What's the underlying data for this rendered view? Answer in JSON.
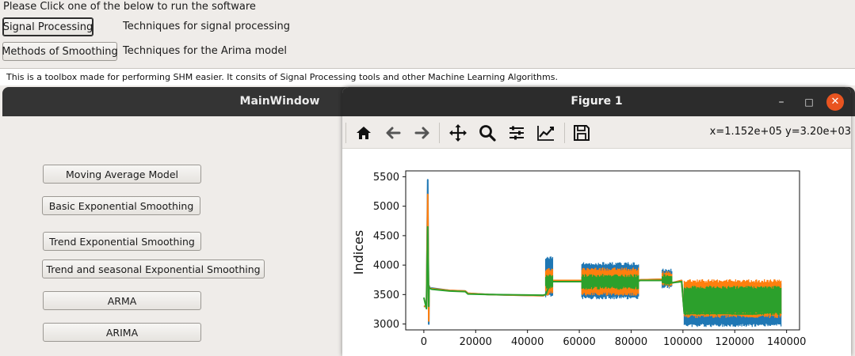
{
  "top": {
    "instruction": "Please Click one of the below to run the software",
    "buttons": [
      {
        "label": "Signal Processing",
        "desc": "Techniques for signal processing"
      },
      {
        "label": "Methods of Smoothing",
        "desc": "Techniques for the Arima model"
      }
    ],
    "info_text": "This is a toolbox made for performing SHM easier. It consits of Signal Processing tools and other Machine Learning Algorithms."
  },
  "main_window": {
    "title": "MainWindow",
    "buttons": [
      "Moving Average Model",
      "Basic Exponential Smoothing",
      "Trend Exponential Smoothing",
      "Trend and seasonal Exponential Smoothing",
      "ARMA",
      "ARIMA"
    ]
  },
  "figure_window": {
    "title": "Figure 1",
    "controls": {
      "minimize": "–",
      "maximize": "□",
      "close": "✕"
    },
    "toolbar_icons": [
      "home-icon",
      "back-arrow-icon",
      "forward-arrow-icon",
      "pan-icon",
      "zoom-icon",
      "configure-subplots-icon",
      "edit-axis-icon",
      "save-icon"
    ],
    "coords_readout": "x=1.152e+05 y=3.20e+03"
  },
  "chart_data": {
    "type": "line",
    "ylabel": "Indices",
    "xlabel": "",
    "xlim": [
      -7000,
      145000
    ],
    "ylim": [
      2900,
      5600
    ],
    "xticks": [
      0,
      20000,
      40000,
      60000,
      80000,
      100000,
      120000,
      140000
    ],
    "xtick_labels": [
      "0",
      "20000",
      "40000",
      "60000",
      "80000",
      "100000",
      "120000",
      "140000"
    ],
    "yticks": [
      3000,
      3500,
      4000,
      4500,
      5000,
      5500
    ],
    "ytick_labels": [
      "3000",
      "3500",
      "4000",
      "4500",
      "5000",
      "5500"
    ],
    "colors": [
      "#1f77b4",
      "#ff7f0e",
      "#2ca02c"
    ],
    "series": [
      {
        "x": [
          0,
          1000,
          1500,
          1900,
          2000,
          2300,
          2600,
          3000,
          10000,
          16000,
          17000,
          25000,
          46000,
          47000,
          48000,
          49000,
          50000,
          61000,
          61500,
          83000,
          83500,
          92000,
          93000,
          96000,
          99500,
          100500,
          117000,
          122000,
          128000,
          138000
        ],
        "y": [
          3300,
          3300,
          5450,
          3000,
          3650,
          3620,
          3600,
          3610,
          3570,
          3560,
          3520,
          3500,
          3480,
          3500,
          3500,
          3700,
          3740,
          3740,
          3730,
          3740,
          3750,
          3760,
          3720,
          3700,
          3740,
          3200,
          3200,
          3150,
          3100,
          3250
        ],
        "band": [
          [
            47000,
            50000,
            3450,
            4150
          ],
          [
            61000,
            83000,
            3420,
            4050
          ],
          [
            92000,
            96000,
            3600,
            3950
          ],
          [
            100500,
            138000,
            2950,
            3700
          ]
        ]
      },
      {
        "x": [
          0,
          1000,
          1500,
          1900,
          2000,
          2300,
          2600,
          3000,
          10000,
          16000,
          17000,
          25000,
          46000,
          47000,
          48000,
          49000,
          50000,
          61000,
          61500,
          83000,
          83500,
          92000,
          93000,
          96000,
          99500,
          100500,
          117000,
          122000,
          128000,
          138000
        ],
        "y": [
          3300,
          3300,
          5200,
          3050,
          3630,
          3620,
          3600,
          3600,
          3570,
          3560,
          3520,
          3500,
          3480,
          3500,
          3500,
          3700,
          3740,
          3740,
          3730,
          3740,
          3750,
          3760,
          3720,
          3700,
          3740,
          3200,
          3200,
          3160,
          3120,
          3250
        ],
        "band": [
          [
            47000,
            50000,
            3500,
            3950
          ],
          [
            61000,
            83000,
            3480,
            3960
          ],
          [
            92000,
            96000,
            3620,
            3900
          ],
          [
            100500,
            138000,
            3100,
            3760
          ]
        ]
      },
      {
        "x": [
          0,
          1000,
          1500,
          1900,
          2000,
          2300,
          2600,
          3000,
          10000,
          16000,
          17000,
          25000,
          46000,
          47000,
          48000,
          49000,
          50000,
          61000,
          61500,
          83000,
          83500,
          92000,
          93000,
          96000,
          99500,
          100500,
          117000,
          122000,
          128000,
          138000
        ],
        "y": [
          3450,
          3260,
          4650,
          3300,
          3620,
          3610,
          3600,
          3590,
          3560,
          3550,
          3510,
          3500,
          3490,
          3500,
          3600,
          3700,
          3720,
          3720,
          3720,
          3730,
          3740,
          3740,
          3700,
          3700,
          3720,
          3180,
          3180,
          3170,
          3170,
          3220
        ],
        "band": [
          [
            47000,
            50000,
            3600,
            3850
          ],
          [
            61000,
            83000,
            3580,
            3850
          ],
          [
            92000,
            96000,
            3650,
            3850
          ],
          [
            100500,
            138000,
            3150,
            3650
          ]
        ]
      }
    ]
  }
}
